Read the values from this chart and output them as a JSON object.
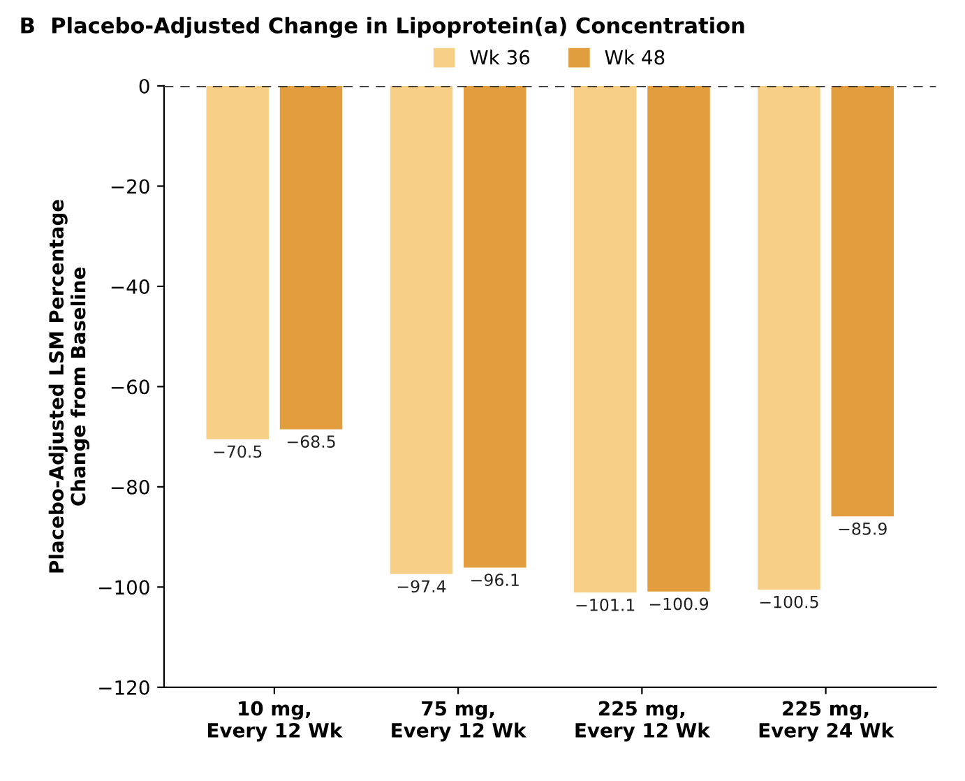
{
  "chart_data": {
    "type": "bar",
    "title": "B  Placebo-Adjusted Change in Lipoprotein(a) Concentration",
    "ylabel": "Placebo-Adjusted LSM Percentage\nChange from Baseline",
    "categories": [
      "10 mg,\nEvery 12 Wk",
      "75 mg,\nEvery 12 Wk",
      "225 mg,\nEvery 12 Wk",
      "225 mg,\nEvery 24 Wk"
    ],
    "series": [
      {
        "name": "Wk 36",
        "color": "#f8cf86",
        "values": [
          -70.5,
          -97.4,
          -101.1,
          -100.5
        ]
      },
      {
        "name": "Wk 48",
        "color": "#e29d3e",
        "values": [
          -68.5,
          -96.1,
          -100.9,
          -85.9
        ]
      }
    ],
    "ylim": [
      -120,
      0
    ],
    "yticks": [
      {
        "value": 0,
        "label": "0"
      },
      {
        "value": -20,
        "label": "−20"
      },
      {
        "value": -40,
        "label": "−40"
      },
      {
        "value": -60,
        "label": "−60"
      },
      {
        "value": -80,
        "label": "−80"
      },
      {
        "value": -100,
        "label": "−100"
      },
      {
        "value": -120,
        "label": "−120"
      }
    ],
    "ref_lines": [
      {
        "axis": "y",
        "value": 0,
        "label": null,
        "color": "#333333",
        "line_style": "dashed"
      }
    ],
    "data_labels": true,
    "legend": "top",
    "grid": false
  }
}
